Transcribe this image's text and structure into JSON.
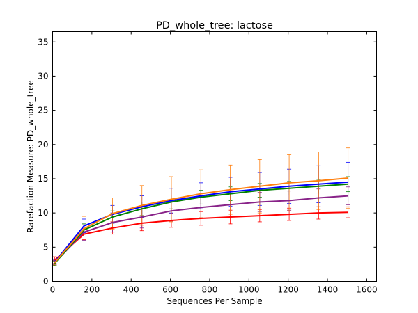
{
  "chart_data": {
    "type": "line",
    "title": "PD_whole_tree: lactose",
    "xlabel": "Sequences Per Sample",
    "ylabel": "Rarefaction Measure: PD_whole_tree",
    "xlim": [
      0,
      1650
    ],
    "ylim": [
      0,
      36.5
    ],
    "xticks": [
      0,
      200,
      400,
      600,
      800,
      1000,
      1200,
      1400,
      1600
    ],
    "yticks": [
      0,
      5,
      10,
      15,
      20,
      25,
      30,
      35
    ],
    "grid": false,
    "legend": "none",
    "series": [
      {
        "color": "#ff0000",
        "x": [
          10,
          160,
          305,
          455,
          605,
          755,
          905,
          1055,
          1205,
          1355,
          1505
        ],
        "y": [
          3.1,
          6.9,
          7.8,
          8.5,
          8.9,
          9.2,
          9.4,
          9.6,
          9.8,
          10.0,
          10.1
        ],
        "err": [
          0.5,
          0.8,
          0.9,
          1.1,
          1.0,
          1.0,
          1.0,
          0.9,
          0.9,
          0.9,
          0.8
        ]
      },
      {
        "color": "#882288",
        "x": [
          10,
          160,
          305,
          455,
          605,
          755,
          905,
          1055,
          1205,
          1355,
          1505
        ],
        "y": [
          2.7,
          7.2,
          8.6,
          9.4,
          10.3,
          10.8,
          11.2,
          11.6,
          11.8,
          12.2,
          12.5
        ],
        "err": [
          0.4,
          1.2,
          1.4,
          1.6,
          1.5,
          1.5,
          1.4,
          1.4,
          1.4,
          1.3,
          1.3
        ]
      },
      {
        "color": "#008000",
        "x": [
          10,
          160,
          305,
          455,
          605,
          755,
          905,
          1055,
          1205,
          1355,
          1505
        ],
        "y": [
          2.6,
          7.5,
          9.4,
          10.6,
          11.6,
          12.3,
          12.8,
          13.3,
          13.6,
          13.9,
          14.2
        ],
        "err": [
          0.3,
          0.9,
          0.9,
          1.0,
          1.0,
          1.0,
          1.0,
          1.0,
          1.0,
          1.0,
          1.1
        ]
      },
      {
        "color": "#0000ff",
        "x": [
          10,
          160,
          305,
          455,
          605,
          755,
          905,
          1055,
          1205,
          1355,
          1505
        ],
        "y": [
          2.8,
          8.1,
          9.8,
          10.9,
          11.8,
          12.5,
          13.1,
          13.5,
          13.9,
          14.2,
          14.5
        ],
        "err": [
          0.3,
          1.0,
          1.3,
          1.6,
          1.8,
          1.9,
          2.1,
          2.4,
          2.5,
          2.7,
          2.9
        ]
      },
      {
        "color": "#ff7f0e",
        "x": [
          10,
          160,
          305,
          455,
          605,
          755,
          905,
          1055,
          1205,
          1355,
          1505
        ],
        "y": [
          2.7,
          7.7,
          9.9,
          11.1,
          12.0,
          12.8,
          13.4,
          13.9,
          14.4,
          14.7,
          15.1
        ],
        "err": [
          0.3,
          1.8,
          2.3,
          2.9,
          3.3,
          3.5,
          3.6,
          3.9,
          4.1,
          4.2,
          4.4
        ]
      }
    ]
  }
}
